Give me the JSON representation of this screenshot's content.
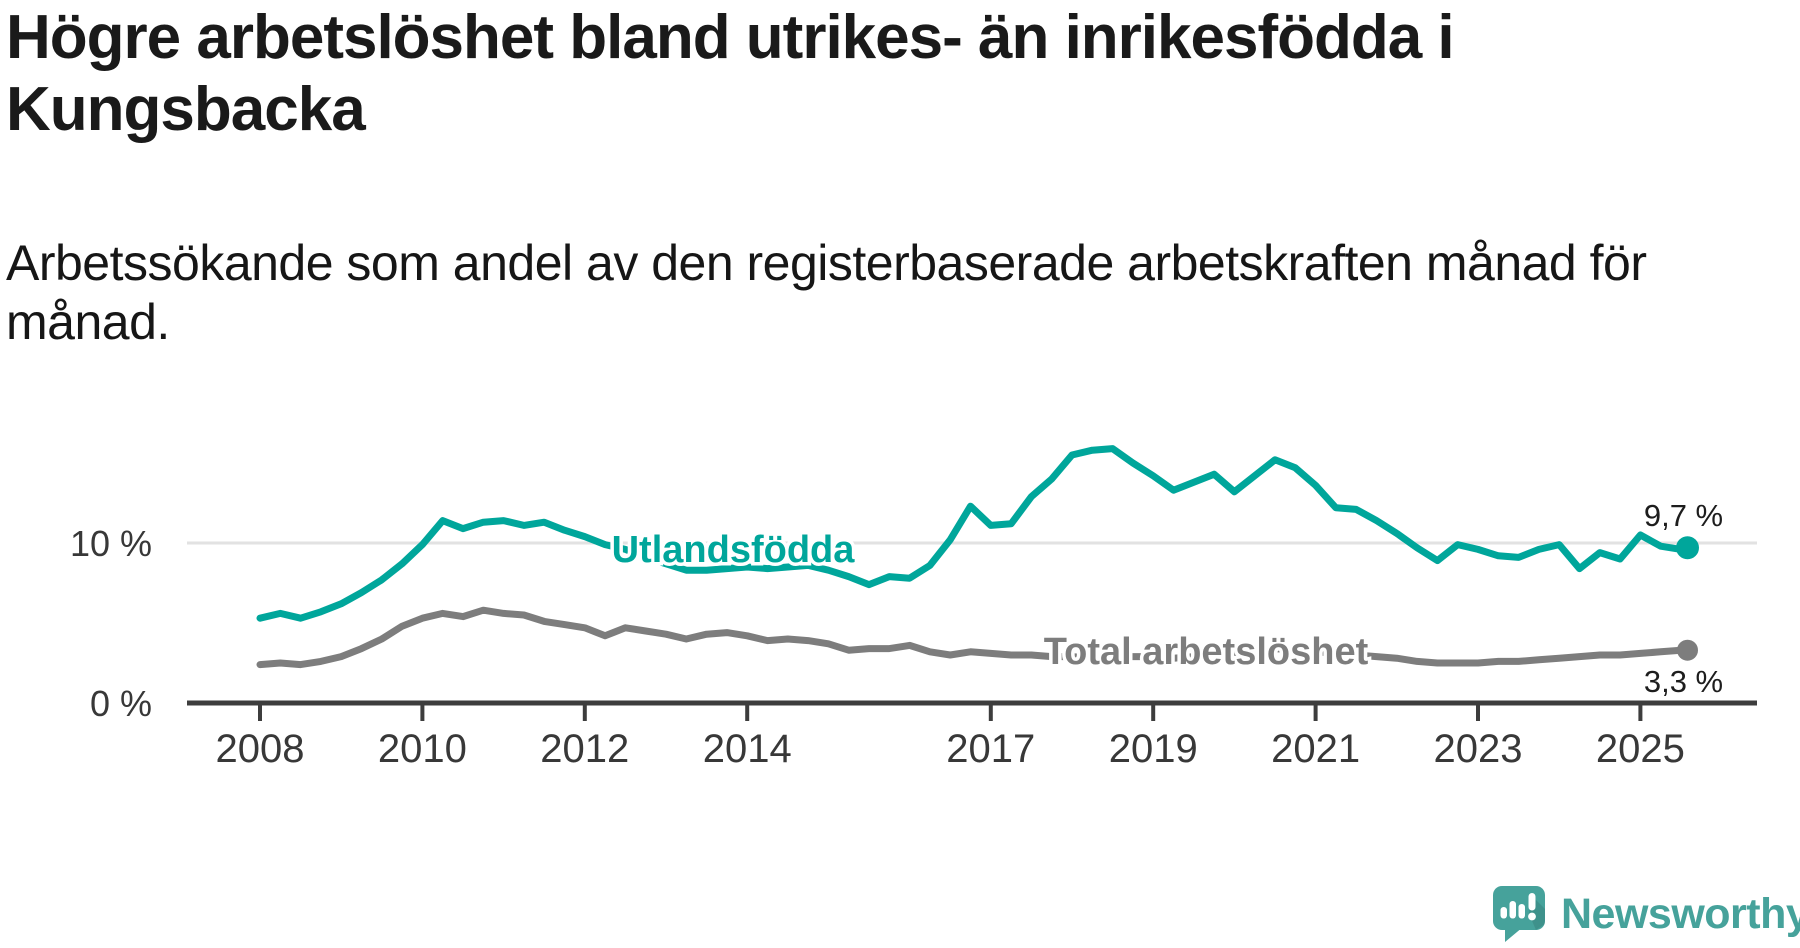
{
  "page": {
    "title": "Högre arbetslöshet bland utrikes- än inrikesfödda i\nKungsbacka",
    "subtitle": "Arbetssökande som andel av den registerbaserade arbetskraften månad för\nmånad."
  },
  "branding": {
    "name": "Newsworthy",
    "icon": "newsworthy-speech-bubble-bar-chart-icon",
    "brand_color": "#46a29b"
  },
  "colors": {
    "foreign_born_line": "#00a69b",
    "total_line": "#7d7d7d",
    "axis": "#3d3d3d",
    "gridline": "#e2e2e2",
    "value_label_text": "#1d1d1d",
    "background": "#ffffff"
  },
  "chart_data": {
    "type": "line",
    "grid": "horizontal line at 10 % only",
    "legend_position": "inline labels on lines",
    "x_axis": {
      "ticks": [
        2008,
        2010,
        2012,
        2014,
        2017,
        2019,
        2021,
        2023,
        2025
      ],
      "range": [
        2007.1,
        2026.4
      ]
    },
    "y_axis": {
      "ticks": [
        {
          "value": 10,
          "label": "10 %"
        },
        {
          "value": 0,
          "label": "0 %"
        }
      ],
      "range": [
        0,
        16.5
      ],
      "unit": "%"
    },
    "x": [
      2008,
      2008.25,
      2008.5,
      2008.75,
      2009,
      2009.25,
      2009.5,
      2009.75,
      2010,
      2010.25,
      2010.5,
      2010.75,
      2011,
      2011.25,
      2011.5,
      2011.75,
      2012,
      2012.25,
      2012.5,
      2012.75,
      2013,
      2013.25,
      2013.5,
      2013.75,
      2014,
      2014.25,
      2014.5,
      2014.75,
      2015,
      2015.25,
      2015.5,
      2015.75,
      2016,
      2016.25,
      2016.5,
      2016.75,
      2017,
      2017.25,
      2017.5,
      2017.75,
      2018,
      2018.25,
      2018.5,
      2018.75,
      2019,
      2019.25,
      2019.5,
      2019.75,
      2020,
      2020.25,
      2020.5,
      2020.75,
      2021,
      2021.25,
      2021.5,
      2021.75,
      2022,
      2022.25,
      2022.5,
      2022.75,
      2023,
      2023.25,
      2023.5,
      2023.75,
      2024,
      2024.25,
      2024.5,
      2024.75,
      2025,
      2025.25,
      2025.5,
      2025.58
    ],
    "series": [
      {
        "name": "Utlandsfödda",
        "color": "#00a69b",
        "end_label": "9,7 %",
        "end_value": 9.7,
        "values": [
          5.3,
          5.6,
          5.3,
          5.7,
          6.2,
          6.9,
          7.7,
          8.7,
          9.9,
          11.4,
          10.9,
          11.3,
          11.4,
          11.1,
          11.3,
          10.8,
          10.4,
          9.9,
          9.6,
          9.1,
          8.7,
          8.3,
          8.3,
          8.4,
          8.5,
          8.4,
          8.5,
          8.6,
          8.3,
          7.9,
          7.4,
          7.9,
          7.8,
          8.6,
          10.2,
          12.3,
          11.1,
          11.2,
          12.9,
          14.0,
          15.5,
          15.8,
          15.9,
          15.0,
          14.2,
          13.3,
          13.8,
          14.3,
          13.2,
          14.2,
          15.2,
          14.7,
          13.6,
          12.2,
          12.1,
          11.4,
          10.6,
          9.7,
          8.9,
          9.9,
          9.6,
          9.2,
          9.1,
          9.6,
          9.9,
          8.4,
          9.4,
          9.0,
          10.5,
          9.8,
          9.6,
          9.7
        ]
      },
      {
        "name": "Total arbetslöshet",
        "color": "#7d7d7d",
        "end_label": "3,3 %",
        "end_value": 3.3,
        "values": [
          2.4,
          2.5,
          2.4,
          2.6,
          2.9,
          3.4,
          4.0,
          4.8,
          5.3,
          5.6,
          5.4,
          5.8,
          5.6,
          5.5,
          5.1,
          4.9,
          4.7,
          4.2,
          4.7,
          4.5,
          4.3,
          4.0,
          4.3,
          4.4,
          4.2,
          3.9,
          4.0,
          3.9,
          3.7,
          3.3,
          3.4,
          3.4,
          3.6,
          3.2,
          3.0,
          3.2,
          3.1,
          3.0,
          3.0,
          2.9,
          2.9,
          2.8,
          2.9,
          2.9,
          2.9,
          2.8,
          2.9,
          3.0,
          3.0,
          3.2,
          3.4,
          3.3,
          3.2,
          3.1,
          3.0,
          2.9,
          2.8,
          2.6,
          2.5,
          2.5,
          2.5,
          2.6,
          2.6,
          2.7,
          2.8,
          2.9,
          3.0,
          3.0,
          3.1,
          3.2,
          3.3,
          3.3
        ]
      }
    ]
  }
}
